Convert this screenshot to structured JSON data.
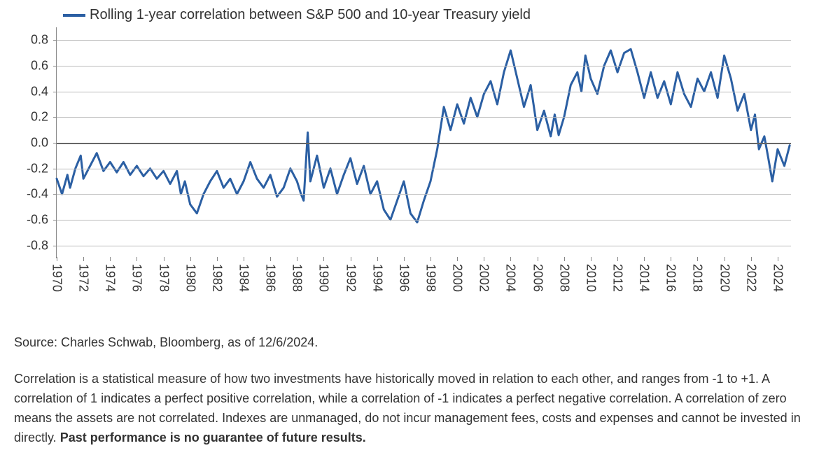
{
  "chart": {
    "type": "line",
    "legend_label": "Rolling 1-year correlation between S&P 500 and 10-year Treasury yield",
    "line_color": "#2b5fa3",
    "line_width": 3,
    "background_color": "#ffffff",
    "grid_color": "#bbbbbb",
    "axis_color": "#888888",
    "zero_line_color": "#666666",
    "label_color": "#333333",
    "axis_fontsize": 18,
    "legend_fontsize": 20,
    "ylim": [
      -0.9,
      0.9
    ],
    "yticks": [
      -0.8,
      -0.6,
      -0.4,
      -0.2,
      0.0,
      0.2,
      0.4,
      0.6,
      0.8
    ],
    "ytick_labels": [
      "-0.8",
      "-0.6",
      "-0.4",
      "-0.2",
      "0.0",
      "0.2",
      "0.4",
      "0.6",
      "0.8"
    ],
    "xlim": [
      1970,
      2025
    ],
    "xticks": [
      1970,
      1972,
      1974,
      1976,
      1978,
      1980,
      1982,
      1984,
      1986,
      1988,
      1990,
      1992,
      1994,
      1996,
      1998,
      2000,
      2002,
      2004,
      2006,
      2008,
      2010,
      2012,
      2014,
      2016,
      2018,
      2020,
      2022,
      2024
    ],
    "series": [
      {
        "x": 1970.0,
        "y": -0.28
      },
      {
        "x": 1970.4,
        "y": -0.4
      },
      {
        "x": 1970.8,
        "y": -0.25
      },
      {
        "x": 1971.0,
        "y": -0.35
      },
      {
        "x": 1971.4,
        "y": -0.2
      },
      {
        "x": 1971.8,
        "y": -0.1
      },
      {
        "x": 1972.0,
        "y": -0.28
      },
      {
        "x": 1972.5,
        "y": -0.18
      },
      {
        "x": 1973.0,
        "y": -0.08
      },
      {
        "x": 1973.5,
        "y": -0.22
      },
      {
        "x": 1974.0,
        "y": -0.15
      },
      {
        "x": 1974.5,
        "y": -0.23
      },
      {
        "x": 1975.0,
        "y": -0.15
      },
      {
        "x": 1975.5,
        "y": -0.25
      },
      {
        "x": 1976.0,
        "y": -0.18
      },
      {
        "x": 1976.5,
        "y": -0.26
      },
      {
        "x": 1977.0,
        "y": -0.2
      },
      {
        "x": 1977.5,
        "y": -0.28
      },
      {
        "x": 1978.0,
        "y": -0.22
      },
      {
        "x": 1978.5,
        "y": -0.32
      },
      {
        "x": 1979.0,
        "y": -0.22
      },
      {
        "x": 1979.3,
        "y": -0.4
      },
      {
        "x": 1979.6,
        "y": -0.3
      },
      {
        "x": 1980.0,
        "y": -0.48
      },
      {
        "x": 1980.5,
        "y": -0.55
      },
      {
        "x": 1981.0,
        "y": -0.4
      },
      {
        "x": 1981.5,
        "y": -0.3
      },
      {
        "x": 1982.0,
        "y": -0.22
      },
      {
        "x": 1982.5,
        "y": -0.35
      },
      {
        "x": 1983.0,
        "y": -0.28
      },
      {
        "x": 1983.5,
        "y": -0.4
      },
      {
        "x": 1984.0,
        "y": -0.3
      },
      {
        "x": 1984.5,
        "y": -0.15
      },
      {
        "x": 1985.0,
        "y": -0.28
      },
      {
        "x": 1985.5,
        "y": -0.35
      },
      {
        "x": 1986.0,
        "y": -0.25
      },
      {
        "x": 1986.5,
        "y": -0.42
      },
      {
        "x": 1987.0,
        "y": -0.35
      },
      {
        "x": 1987.5,
        "y": -0.2
      },
      {
        "x": 1988.0,
        "y": -0.3
      },
      {
        "x": 1988.3,
        "y": -0.4
      },
      {
        "x": 1988.5,
        "y": -0.45
      },
      {
        "x": 1988.8,
        "y": 0.08
      },
      {
        "x": 1989.0,
        "y": -0.3
      },
      {
        "x": 1989.5,
        "y": -0.1
      },
      {
        "x": 1990.0,
        "y": -0.35
      },
      {
        "x": 1990.5,
        "y": -0.2
      },
      {
        "x": 1991.0,
        "y": -0.4
      },
      {
        "x": 1991.5,
        "y": -0.25
      },
      {
        "x": 1992.0,
        "y": -0.12
      },
      {
        "x": 1992.5,
        "y": -0.32
      },
      {
        "x": 1993.0,
        "y": -0.18
      },
      {
        "x": 1993.5,
        "y": -0.4
      },
      {
        "x": 1994.0,
        "y": -0.3
      },
      {
        "x": 1994.5,
        "y": -0.52
      },
      {
        "x": 1995.0,
        "y": -0.6
      },
      {
        "x": 1995.5,
        "y": -0.45
      },
      {
        "x": 1996.0,
        "y": -0.3
      },
      {
        "x": 1996.5,
        "y": -0.55
      },
      {
        "x": 1997.0,
        "y": -0.62
      },
      {
        "x": 1997.5,
        "y": -0.45
      },
      {
        "x": 1998.0,
        "y": -0.3
      },
      {
        "x": 1998.5,
        "y": -0.05
      },
      {
        "x": 1999.0,
        "y": 0.28
      },
      {
        "x": 1999.5,
        "y": 0.1
      },
      {
        "x": 2000.0,
        "y": 0.3
      },
      {
        "x": 2000.5,
        "y": 0.15
      },
      {
        "x": 2001.0,
        "y": 0.35
      },
      {
        "x": 2001.5,
        "y": 0.2
      },
      {
        "x": 2002.0,
        "y": 0.38
      },
      {
        "x": 2002.5,
        "y": 0.48
      },
      {
        "x": 2003.0,
        "y": 0.3
      },
      {
        "x": 2003.5,
        "y": 0.55
      },
      {
        "x": 2004.0,
        "y": 0.72
      },
      {
        "x": 2004.5,
        "y": 0.5
      },
      {
        "x": 2005.0,
        "y": 0.28
      },
      {
        "x": 2005.5,
        "y": 0.45
      },
      {
        "x": 2006.0,
        "y": 0.1
      },
      {
        "x": 2006.5,
        "y": 0.25
      },
      {
        "x": 2007.0,
        "y": 0.05
      },
      {
        "x": 2007.3,
        "y": 0.22
      },
      {
        "x": 2007.6,
        "y": 0.06
      },
      {
        "x": 2008.0,
        "y": 0.2
      },
      {
        "x": 2008.5,
        "y": 0.45
      },
      {
        "x": 2009.0,
        "y": 0.55
      },
      {
        "x": 2009.3,
        "y": 0.4
      },
      {
        "x": 2009.6,
        "y": 0.68
      },
      {
        "x": 2010.0,
        "y": 0.5
      },
      {
        "x": 2010.5,
        "y": 0.38
      },
      {
        "x": 2011.0,
        "y": 0.6
      },
      {
        "x": 2011.5,
        "y": 0.72
      },
      {
        "x": 2012.0,
        "y": 0.55
      },
      {
        "x": 2012.5,
        "y": 0.7
      },
      {
        "x": 2013.0,
        "y": 0.73
      },
      {
        "x": 2013.5,
        "y": 0.55
      },
      {
        "x": 2014.0,
        "y": 0.35
      },
      {
        "x": 2014.5,
        "y": 0.55
      },
      {
        "x": 2015.0,
        "y": 0.35
      },
      {
        "x": 2015.5,
        "y": 0.48
      },
      {
        "x": 2016.0,
        "y": 0.3
      },
      {
        "x": 2016.5,
        "y": 0.55
      },
      {
        "x": 2017.0,
        "y": 0.38
      },
      {
        "x": 2017.5,
        "y": 0.28
      },
      {
        "x": 2018.0,
        "y": 0.5
      },
      {
        "x": 2018.5,
        "y": 0.4
      },
      {
        "x": 2019.0,
        "y": 0.55
      },
      {
        "x": 2019.5,
        "y": 0.35
      },
      {
        "x": 2020.0,
        "y": 0.68
      },
      {
        "x": 2020.5,
        "y": 0.5
      },
      {
        "x": 2021.0,
        "y": 0.25
      },
      {
        "x": 2021.5,
        "y": 0.38
      },
      {
        "x": 2022.0,
        "y": 0.1
      },
      {
        "x": 2022.3,
        "y": 0.22
      },
      {
        "x": 2022.6,
        "y": -0.05
      },
      {
        "x": 2023.0,
        "y": 0.05
      },
      {
        "x": 2023.3,
        "y": -0.12
      },
      {
        "x": 2023.6,
        "y": -0.3
      },
      {
        "x": 2024.0,
        "y": -0.05
      },
      {
        "x": 2024.5,
        "y": -0.18
      },
      {
        "x": 2024.9,
        "y": -0.02
      }
    ]
  },
  "source_text": "Source: Charles Schwab, Bloomberg, as of 12/6/2024.",
  "disclaimer_text": "Correlation is a statistical measure of how two investments have historically moved in relation to each other, and ranges from -1 to +1. A correlation of 1 indicates a perfect positive correlation, while a correlation of -1 indicates a perfect negative correlation. A correlation of zero means the assets are not correlated. Indexes are unmanaged, do not incur management fees, costs and expenses and cannot be invested in directly. ",
  "disclaimer_bold": "Past performance is no guarantee of future results."
}
